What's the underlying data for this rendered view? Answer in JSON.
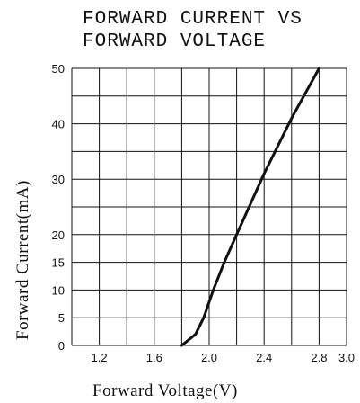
{
  "chart_data": {
    "type": "line",
    "title_lines": [
      "FORWARD CURRENT VS",
      "FORWARD VOLTAGE"
    ],
    "xlabel": "Forward   Voltage(V)",
    "ylabel": "Forward   Current(mA)",
    "x_ticks": [
      "1.2",
      "1.6",
      "2.0",
      "2.4",
      "2.8",
      "3.0"
    ],
    "y_ticks": [
      "0",
      "5",
      "10",
      "15",
      "20",
      "30",
      "40",
      "50"
    ],
    "grid": true,
    "series": [
      {
        "points": [
          {
            "x": 1.8,
            "y": 0
          },
          {
            "x": 1.9,
            "y": 2
          },
          {
            "x": 1.96,
            "y": 5
          },
          {
            "x": 2.03,
            "y": 10
          },
          {
            "x": 2.11,
            "y": 15
          },
          {
            "x": 2.2,
            "y": 20
          },
          {
            "x": 2.4,
            "y": 31
          },
          {
            "x": 2.6,
            "y": 41
          },
          {
            "x": 2.8,
            "y": 50
          }
        ]
      }
    ]
  }
}
